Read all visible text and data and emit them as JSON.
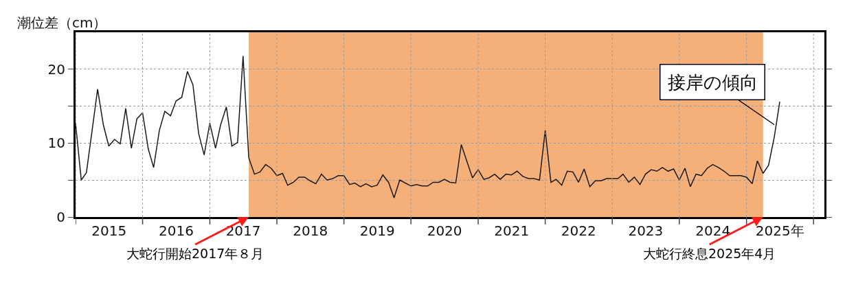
{
  "chart_data": {
    "type": "line",
    "ylabel": "潮位差（cm）",
    "x": [
      "2015-01",
      "2015-02",
      "2015-03",
      "2015-04",
      "2015-05",
      "2015-06",
      "2015-07",
      "2015-08",
      "2015-09",
      "2015-10",
      "2015-11",
      "2015-12",
      "2016-01",
      "2016-02",
      "2016-03",
      "2016-04",
      "2016-05",
      "2016-06",
      "2016-07",
      "2016-08",
      "2016-09",
      "2016-10",
      "2016-11",
      "2016-12",
      "2017-01",
      "2017-02",
      "2017-03",
      "2017-04",
      "2017-05",
      "2017-06",
      "2017-07",
      "2017-08",
      "2017-09",
      "2017-10",
      "2017-11",
      "2017-12",
      "2018-01",
      "2018-02",
      "2018-03",
      "2018-04",
      "2018-05",
      "2018-06",
      "2018-07",
      "2018-08",
      "2018-09",
      "2018-10",
      "2018-11",
      "2018-12",
      "2019-01",
      "2019-02",
      "2019-03",
      "2019-04",
      "2019-05",
      "2019-06",
      "2019-07",
      "2019-08",
      "2019-09",
      "2019-10",
      "2019-11",
      "2019-12",
      "2020-01",
      "2020-02",
      "2020-03",
      "2020-04",
      "2020-05",
      "2020-06",
      "2020-07",
      "2020-08",
      "2020-09",
      "2020-10",
      "2020-11",
      "2020-12",
      "2021-01",
      "2021-02",
      "2021-03",
      "2021-04",
      "2021-05",
      "2021-06",
      "2021-07",
      "2021-08",
      "2021-09",
      "2021-10",
      "2021-11",
      "2021-12",
      "2022-01",
      "2022-02",
      "2022-03",
      "2022-04",
      "2022-05",
      "2022-06",
      "2022-07",
      "2022-08",
      "2022-09",
      "2022-10",
      "2022-11",
      "2022-12",
      "2023-01",
      "2023-02",
      "2023-03",
      "2023-04",
      "2023-05",
      "2023-06",
      "2023-07",
      "2023-08",
      "2023-09",
      "2023-10",
      "2023-11",
      "2023-12",
      "2024-01",
      "2024-02",
      "2024-03",
      "2024-04",
      "2024-05",
      "2024-06",
      "2024-07",
      "2024-08",
      "2024-09",
      "2024-10",
      "2024-11",
      "2024-12",
      "2025-01",
      "2025-02",
      "2025-03",
      "2025-04",
      "2025-05",
      "2025-06",
      "2025-07"
    ],
    "series": [
      {
        "color": "#1a1a1a",
        "values": [
          12.7,
          5.0,
          6.0,
          11.7,
          17.3,
          12.5,
          9.6,
          10.5,
          9.9,
          14.7,
          9.3,
          13.3,
          14.1,
          9.2,
          6.7,
          11.7,
          14.3,
          13.7,
          15.7,
          16.2,
          19.7,
          17.9,
          11.3,
          8.4,
          12.7,
          9.3,
          12.5,
          14.9,
          9.6,
          10.1,
          21.8,
          8.0,
          5.8,
          6.1,
          7.1,
          6.6,
          5.6,
          5.9,
          4.3,
          4.7,
          5.4,
          5.4,
          4.9,
          4.5,
          5.8,
          5.0,
          5.2,
          5.6,
          5.6,
          4.4,
          4.6,
          4.1,
          4.5,
          4.1,
          4.3,
          5.7,
          4.7,
          2.6,
          5.0,
          4.6,
          4.2,
          4.4,
          4.2,
          4.2,
          4.7,
          4.7,
          5.1,
          4.7,
          4.6,
          9.8,
          7.5,
          5.3,
          6.4,
          5.1,
          5.3,
          5.8,
          5.1,
          5.8,
          5.7,
          6.2,
          5.5,
          5.2,
          5.2,
          5.0,
          11.7,
          4.7,
          5.1,
          4.3,
          6.2,
          6.1,
          4.7,
          6.5,
          4.1,
          4.9,
          4.9,
          5.2,
          5.2,
          5.2,
          5.8,
          4.7,
          5.4,
          4.4,
          5.8,
          6.4,
          6.2,
          6.7,
          6.2,
          6.5,
          5.0,
          6.6,
          4.1,
          5.8,
          5.6,
          6.6,
          7.1,
          6.7,
          6.2,
          5.6,
          5.6,
          5.6,
          5.4,
          4.5,
          7.6,
          5.9,
          7.0,
          10.8,
          15.6
        ]
      }
    ],
    "xlim": [
      "2015-01-01",
      "2026-03-01"
    ],
    "xticks": [
      {
        "value": "2015-01-01",
        "label": null
      },
      {
        "value": "2015-07-02",
        "label": "2015"
      },
      {
        "value": "2016-01-01",
        "label": null
      },
      {
        "value": "2016-07-02",
        "label": "2016"
      },
      {
        "value": "2017-01-01",
        "label": null
      },
      {
        "value": "2017-07-02",
        "label": "2017"
      },
      {
        "value": "2018-01-01",
        "label": null
      },
      {
        "value": "2018-07-02",
        "label": "2018"
      },
      {
        "value": "2019-01-01",
        "label": null
      },
      {
        "value": "2019-07-02",
        "label": "2019"
      },
      {
        "value": "2020-01-01",
        "label": null
      },
      {
        "value": "2020-07-02",
        "label": "2020"
      },
      {
        "value": "2021-01-01",
        "label": null
      },
      {
        "value": "2021-07-02",
        "label": "2021"
      },
      {
        "value": "2022-01-01",
        "label": null
      },
      {
        "value": "2022-07-02",
        "label": "2022"
      },
      {
        "value": "2023-01-01",
        "label": null
      },
      {
        "value": "2023-07-02",
        "label": "2023"
      },
      {
        "value": "2024-01-01",
        "label": null
      },
      {
        "value": "2024-07-02",
        "label": "2024"
      },
      {
        "value": "2025-01-01",
        "label": null
      },
      {
        "value": "2025-07-02",
        "label": "2025年"
      },
      {
        "value": "2026-01-01",
        "label": null
      }
    ],
    "ylim": [
      0,
      25
    ],
    "yticks": [
      0,
      {
        "value": 5,
        "label": null
      },
      10,
      {
        "value": 15,
        "label": null
      },
      20
    ],
    "grid": true,
    "bands": [
      {
        "axis": "x",
        "from": "2017-08",
        "to": "2025-04",
        "color": "#f5b07a"
      }
    ],
    "annotations": [
      {
        "text": "接岸の傾向",
        "x": "2025-06",
        "y": 12.5
      },
      {
        "text": "大蛇行開始2017年８月",
        "x": "2017-08",
        "y": 0
      },
      {
        "text": "大蛇行終息2025年4月",
        "x": "2025-04",
        "y": 0
      }
    ]
  }
}
